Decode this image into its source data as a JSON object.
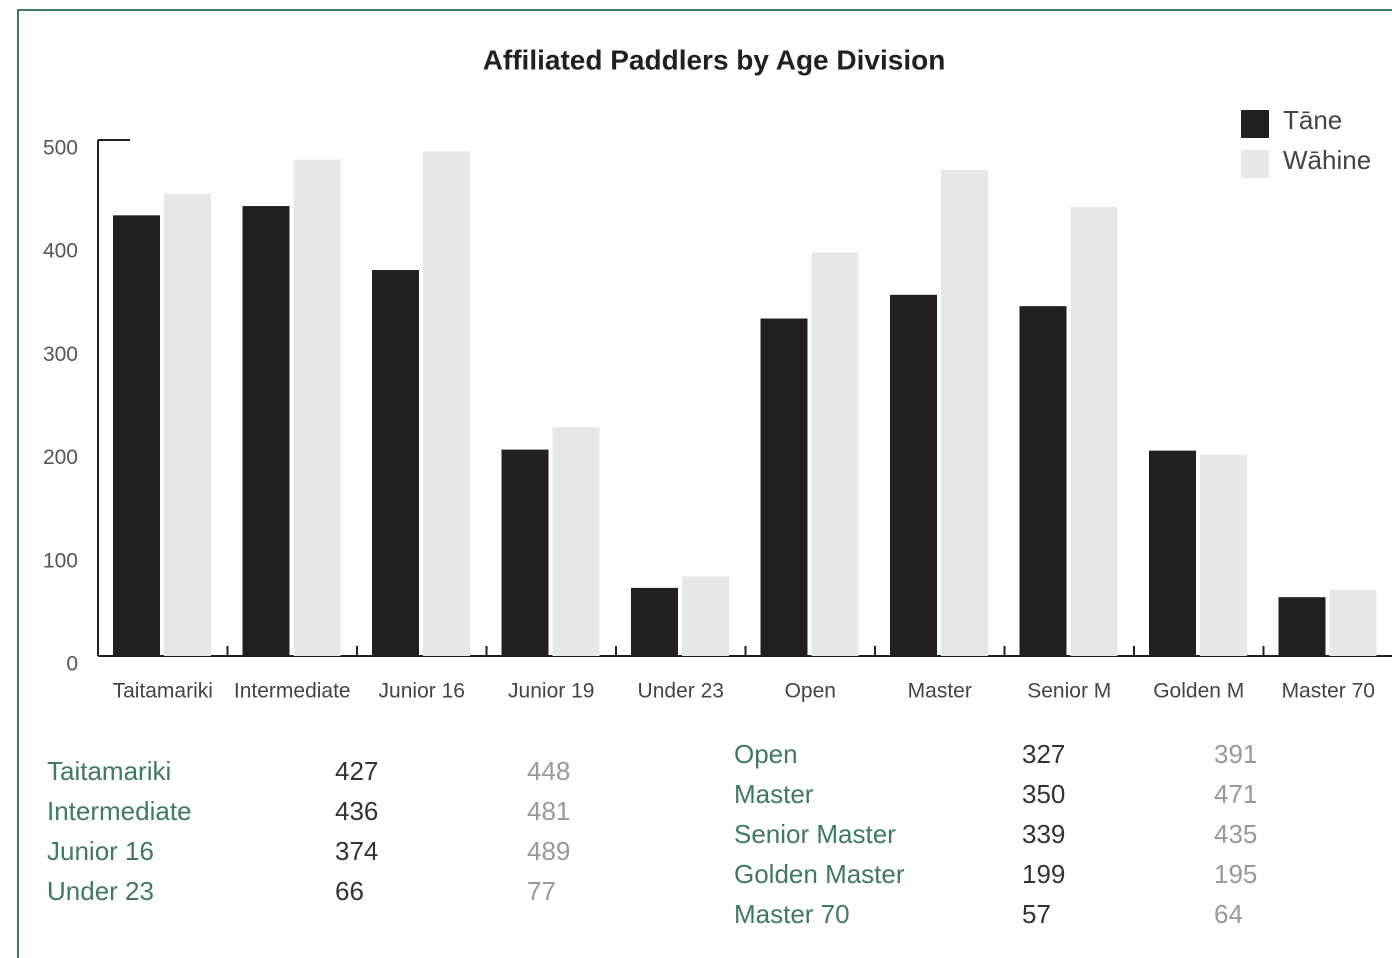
{
  "chart_data": {
    "type": "bar",
    "title": "Affiliated Paddlers by Age Division",
    "categories": [
      "Taitamariki",
      "Intermediate",
      "Junior 16",
      "Junior 19",
      "Under 23",
      "Open",
      "Master",
      "Senior M",
      "Golden M",
      "Master 70"
    ],
    "series": [
      {
        "name": "Tāne",
        "color": "#231f20",
        "values": [
          427,
          436,
          374,
          200,
          66,
          327,
          350,
          339,
          199,
          57
        ]
      },
      {
        "name": "Wāhine",
        "color": "#e6e7e8",
        "values": [
          448,
          481,
          489,
          222,
          77,
          391,
          471,
          435,
          195,
          64
        ]
      }
    ],
    "ylim": [
      0,
      500
    ],
    "yticks": [
      0,
      100,
      200,
      300,
      400,
      500
    ],
    "grid": false,
    "legend": "upper right"
  },
  "tables": [
    {
      "rows": [
        [
          "Taitamariki",
          427,
          448
        ],
        [
          "Intermediate",
          436,
          481
        ],
        [
          "Junior 16",
          374,
          489
        ],
        [
          "Under 23",
          66,
          77
        ]
      ]
    },
    {
      "rows": [
        [
          "Open",
          327,
          391
        ],
        [
          "Master",
          350,
          471
        ],
        [
          "Senior Master",
          339,
          435
        ],
        [
          "Golden Master",
          199,
          195
        ],
        [
          "Master 70",
          57,
          64
        ]
      ]
    }
  ]
}
